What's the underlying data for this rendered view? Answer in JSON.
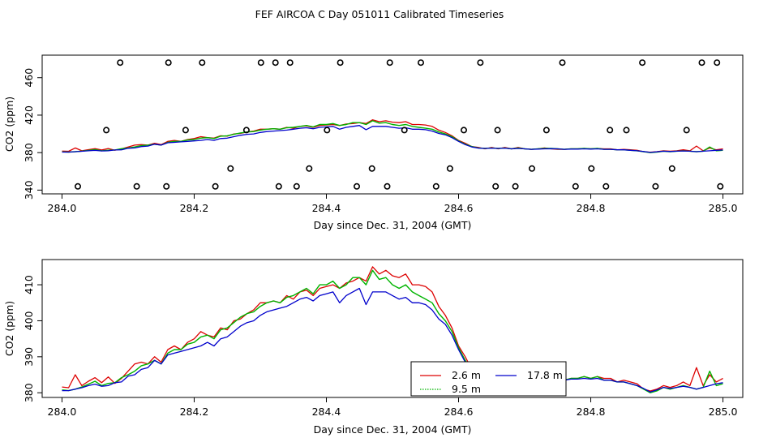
{
  "title": "FEF AIRCOA C  Day 051011  Calibrated Timeseries",
  "colors": {
    "red": "#dd0000",
    "green": "#00b400",
    "blue": "#0000cc",
    "frame": "#000000"
  },
  "chart_data": [
    {
      "type": "line+scatter",
      "xlabel": "Day since Dec. 31, 2004 (GMT)",
      "ylabel": "CO2 (ppm)",
      "xlim": [
        283.97,
        285.03
      ],
      "ylim": [
        336,
        484
      ],
      "xticks": [
        284.0,
        284.2,
        284.4,
        284.6,
        284.8,
        285.0
      ],
      "xtick_labels": [
        "284.0",
        "284.2",
        "284.4",
        "284.6",
        "284.8",
        "285.0"
      ],
      "yticks": [
        340,
        380,
        420,
        460
      ],
      "ytick_labels": [
        "340",
        "380",
        "420",
        "460"
      ],
      "calibration_points": {
        "marker": "open-circle",
        "x": [
          284.024,
          284.067,
          284.088,
          284.113,
          284.158,
          284.161,
          284.187,
          284.212,
          284.232,
          284.255,
          284.279,
          284.301,
          284.323,
          284.328,
          284.345,
          284.355,
          284.374,
          284.401,
          284.421,
          284.446,
          284.469,
          284.492,
          284.496,
          284.518,
          284.543,
          284.566,
          284.587,
          284.608,
          284.633,
          284.656,
          284.659,
          284.686,
          284.711,
          284.733,
          284.757,
          284.777,
          284.801,
          284.823,
          284.829,
          284.854,
          284.878,
          284.898,
          284.923,
          284.945,
          284.968,
          284.991,
          284.996
        ],
        "y": [
          344,
          404,
          476,
          344,
          344,
          476,
          404,
          476,
          344,
          363,
          404,
          476,
          476,
          344,
          476,
          344,
          363,
          404,
          476,
          344,
          363,
          344,
          476,
          404,
          476,
          344,
          363,
          404,
          476,
          344,
          404,
          344,
          363,
          404,
          476,
          344,
          363,
          344,
          404,
          404,
          476,
          344,
          363,
          404,
          476,
          476,
          344
        ]
      },
      "series_ref": "chart_data.1.series"
    },
    {
      "type": "line",
      "xlabel": "Day since Dec. 31, 2004 (GMT)",
      "ylabel": "CO2 (ppm)",
      "xlim": [
        283.97,
        285.03
      ],
      "ylim": [
        378.7,
        417.0
      ],
      "xticks": [
        284.0,
        284.2,
        284.4,
        284.6,
        284.8,
        285.0
      ],
      "xtick_labels": [
        "284.0",
        "284.2",
        "284.4",
        "284.6",
        "284.8",
        "285.0"
      ],
      "yticks": [
        380,
        390,
        400,
        410
      ],
      "ytick_labels": [
        "380",
        "390",
        "400",
        "410"
      ],
      "legend": {
        "placement": "bottom-center-right",
        "entries": [
          {
            "label": "2.6 m",
            "color": "#dd0000",
            "style": "solid"
          },
          {
            "label": "9.5 m",
            "color": "#00b400",
            "style": "dotted"
          },
          {
            "label": "17.8 m",
            "color": "#0000cc",
            "style": "solid"
          }
        ]
      },
      "x": [
        284.0,
        284.01,
        284.02,
        284.03,
        284.04,
        284.05,
        284.06,
        284.07,
        284.08,
        284.09,
        284.1,
        284.11,
        284.12,
        284.13,
        284.14,
        284.15,
        284.16,
        284.17,
        284.18,
        284.19,
        284.2,
        284.21,
        284.22,
        284.23,
        284.24,
        284.25,
        284.26,
        284.27,
        284.28,
        284.29,
        284.3,
        284.31,
        284.32,
        284.33,
        284.34,
        284.35,
        284.36,
        284.37,
        284.38,
        284.39,
        284.4,
        284.41,
        284.42,
        284.43,
        284.44,
        284.45,
        284.46,
        284.47,
        284.48,
        284.49,
        284.5,
        284.51,
        284.52,
        284.53,
        284.54,
        284.55,
        284.56,
        284.57,
        284.58,
        284.59,
        284.6,
        284.61,
        284.62,
        284.63,
        284.64,
        284.65,
        284.66,
        284.67,
        284.68,
        284.69,
        284.7,
        284.71,
        284.72,
        284.73,
        284.74,
        284.75,
        284.76,
        284.77,
        284.78,
        284.79,
        284.8,
        284.81,
        284.82,
        284.83,
        284.84,
        284.85,
        284.86,
        284.87,
        284.88,
        284.89,
        284.9,
        284.91,
        284.92,
        284.93,
        284.94,
        284.95,
        284.96,
        284.97,
        284.98,
        284.99,
        285.0
      ],
      "series": [
        {
          "name": "2.6 m",
          "color": "#dd0000",
          "values": [
            381.6,
            381.4,
            385.0,
            382.0,
            383.2,
            384.2,
            382.8,
            384.4,
            382.6,
            384.0,
            386.0,
            388.0,
            388.5,
            388.0,
            390.0,
            388.5,
            392.0,
            393.0,
            392.0,
            394.0,
            395.0,
            397.0,
            396.0,
            395.5,
            398.0,
            397.5,
            400.0,
            400.5,
            402.0,
            403.0,
            405.0,
            405.0,
            405.5,
            405.0,
            407.0,
            406.0,
            408.0,
            408.5,
            407.0,
            409.0,
            409.5,
            410.0,
            409.0,
            410.5,
            411.0,
            412.0,
            411.0,
            415.0,
            413.0,
            414.0,
            412.5,
            412.0,
            413.0,
            410.0,
            410.0,
            409.5,
            408.0,
            404.0,
            401.5,
            398.0,
            393.0,
            390.0,
            386.5,
            385.5,
            384.0,
            385.5,
            384.0,
            385.5,
            384.0,
            385.5,
            384.0,
            383.5,
            384.0,
            385.0,
            384.0,
            383.5,
            383.5,
            384.0,
            384.0,
            384.5,
            384.0,
            384.5,
            384.0,
            384.0,
            383.0,
            383.5,
            383.0,
            382.5,
            381.0,
            380.5,
            381.0,
            382.0,
            381.5,
            382.0,
            383.0,
            382.0,
            387.0,
            382.0,
            385.0,
            383.0,
            384.0
          ]
        },
        {
          "name": "9.5 m",
          "color": "#00b400",
          "values": [
            380.8,
            380.6,
            381.0,
            381.6,
            382.4,
            383.2,
            382.0,
            382.6,
            382.8,
            384.2,
            385.0,
            386.0,
            387.5,
            388.0,
            389.0,
            388.0,
            391.0,
            392.0,
            392.0,
            393.5,
            394.0,
            395.5,
            396.0,
            395.0,
            397.5,
            398.0,
            399.5,
            401.0,
            402.0,
            402.5,
            404.0,
            405.0,
            405.5,
            405.0,
            406.5,
            407.0,
            408.0,
            409.0,
            407.5,
            410.0,
            410.0,
            411.0,
            409.0,
            410.0,
            412.0,
            412.0,
            410.0,
            414.0,
            411.5,
            412.0,
            410.0,
            409.0,
            410.0,
            408.0,
            407.0,
            406.0,
            405.0,
            402.0,
            400.0,
            397.0,
            392.5,
            389.0,
            386.5,
            385.0,
            384.5,
            385.0,
            384.5,
            385.0,
            384.0,
            385.0,
            384.0,
            383.5,
            384.0,
            384.5,
            384.5,
            384.0,
            383.5,
            384.0,
            384.0,
            384.5,
            384.0,
            384.5,
            383.5,
            383.5,
            383.0,
            383.0,
            382.5,
            382.0,
            381.0,
            380.0,
            380.5,
            381.5,
            381.0,
            381.5,
            382.0,
            381.5,
            381.0,
            381.5,
            386.0,
            382.0,
            382.5
          ]
        },
        {
          "name": "17.8 m",
          "color": "#0000cc",
          "values": [
            380.6,
            380.6,
            381.0,
            381.4,
            382.0,
            382.4,
            381.8,
            382.0,
            382.8,
            383.0,
            384.6,
            385.0,
            386.5,
            387.0,
            389.0,
            388.0,
            390.5,
            391.0,
            391.5,
            392.0,
            392.5,
            393.0,
            394.0,
            393.0,
            395.0,
            395.5,
            397.0,
            398.5,
            399.5,
            400.0,
            401.5,
            402.5,
            403.0,
            403.5,
            404.0,
            405.0,
            406.0,
            406.5,
            405.5,
            407.0,
            407.5,
            408.0,
            405.0,
            407.0,
            408.0,
            409.0,
            404.5,
            408.0,
            408.0,
            408.0,
            407.0,
            406.0,
            406.5,
            405.0,
            405.0,
            404.5,
            403.0,
            400.5,
            399.0,
            396.0,
            392.0,
            388.5,
            386.0,
            384.8,
            384.5,
            384.8,
            384.5,
            384.8,
            384.0,
            384.5,
            384.0,
            383.5,
            383.8,
            384.0,
            384.2,
            384.0,
            383.5,
            383.8,
            383.8,
            384.0,
            383.8,
            384.0,
            383.5,
            383.5,
            383.0,
            383.0,
            382.5,
            382.0,
            381.2,
            380.2,
            380.8,
            381.5,
            381.2,
            381.5,
            381.8,
            381.5,
            381.0,
            381.5,
            382.0,
            382.5,
            382.8
          ]
        }
      ]
    }
  ]
}
